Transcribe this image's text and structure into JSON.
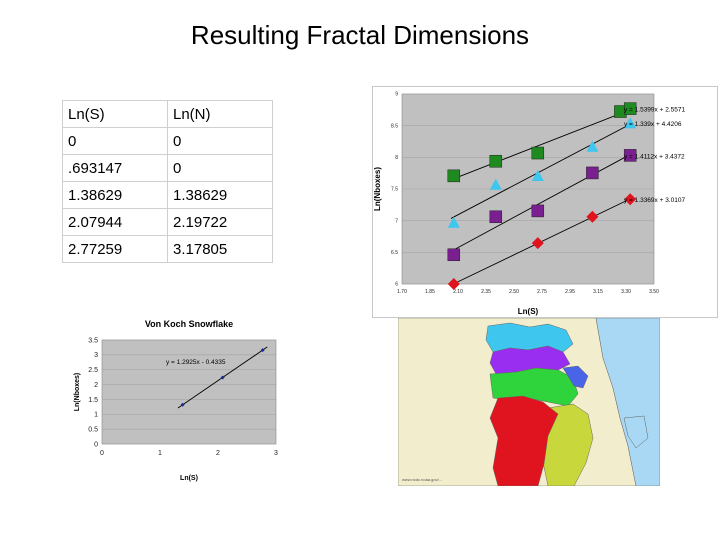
{
  "page_title": "Resulting Fractal Dimensions",
  "table": {
    "header": [
      "Ln(S)",
      "Ln(N)"
    ],
    "rows": [
      [
        "0",
        "0"
      ],
      [
        ".693147",
        "0"
      ],
      [
        "1.38629",
        "1.38629"
      ],
      [
        "2.07944",
        "2.19722"
      ],
      [
        "2.77259",
        "3.17805"
      ]
    ]
  },
  "chart_data": [
    {
      "type": "scatter",
      "title": "",
      "xlabel": "Ln(S)",
      "ylabel": "Ln(Nboxes)",
      "xlim": [
        1.7,
        3.5
      ],
      "ylim": [
        6,
        9.25
      ],
      "xticks": [
        "1.70",
        "1.85",
        "2.10",
        "2.35",
        "2.50",
        "2.75",
        "2.95",
        "3.15",
        "3.30",
        "3.50"
      ],
      "yticks": [
        "6",
        "6.5",
        "7",
        "7.5",
        "8",
        "8.5",
        "9"
      ],
      "grid": true,
      "series": [
        {
          "marker": "square",
          "color": "#1f8a1f",
          "x": [
            2.07,
            2.37,
            2.67,
            3.26,
            3.33
          ],
          "y": [
            7.85,
            8.1,
            8.24,
            8.95,
            9.0
          ],
          "equation": "y = 1.5399x + 2.5571"
        },
        {
          "marker": "triangle",
          "color": "#3ec6ef",
          "x": [
            2.07,
            2.37,
            2.67,
            3.06,
            3.33
          ],
          "y": [
            7.05,
            7.7,
            7.85,
            8.35,
            8.75
          ],
          "equation": "y = 1.339x + 4.4206"
        },
        {
          "marker": "square",
          "color": "#7a1f8f",
          "x": [
            2.07,
            2.37,
            2.67,
            3.06,
            3.33
          ],
          "y": [
            6.5,
            7.15,
            7.25,
            7.9,
            8.2
          ],
          "equation": "y = 1.4112x + 3.4372"
        },
        {
          "marker": "diamond",
          "color": "#e0141e",
          "x": [
            2.07,
            2.67,
            3.06,
            3.33
          ],
          "y": [
            6.0,
            6.7,
            7.15,
            7.45
          ],
          "equation": "y = 1.3369x + 3.0107"
        }
      ]
    },
    {
      "type": "scatter",
      "title": "Von Koch Snowflake",
      "xlabel": "Ln(S)",
      "ylabel": "Ln(Nboxes)",
      "xlim": [
        0,
        3
      ],
      "ylim": [
        0,
        3.5
      ],
      "xticks": [
        "0",
        "1",
        "2",
        "3"
      ],
      "yticks": [
        "0",
        "0.5",
        "1",
        "1.5",
        "2",
        "2.5",
        "3",
        "3.5"
      ],
      "grid": true,
      "series": [
        {
          "marker": "diamond",
          "color": "#1a2a8c",
          "x": [
            1.39,
            2.08,
            2.77
          ],
          "y": [
            1.32,
            2.24,
            3.16
          ],
          "equation": "y = 1.2925x - 0.4335"
        }
      ]
    }
  ],
  "map": {
    "colors": {
      "red": "#e0141e",
      "yellow_green": "#c8d83c",
      "green": "#2fd43c",
      "purple": "#9a2ef0",
      "cyan": "#3ec6ef",
      "blue": "#4a64e8",
      "land": "#f2eecd",
      "water": "#a8d8f4"
    },
    "caption": "www.ncdc.noaa.gov/..."
  }
}
